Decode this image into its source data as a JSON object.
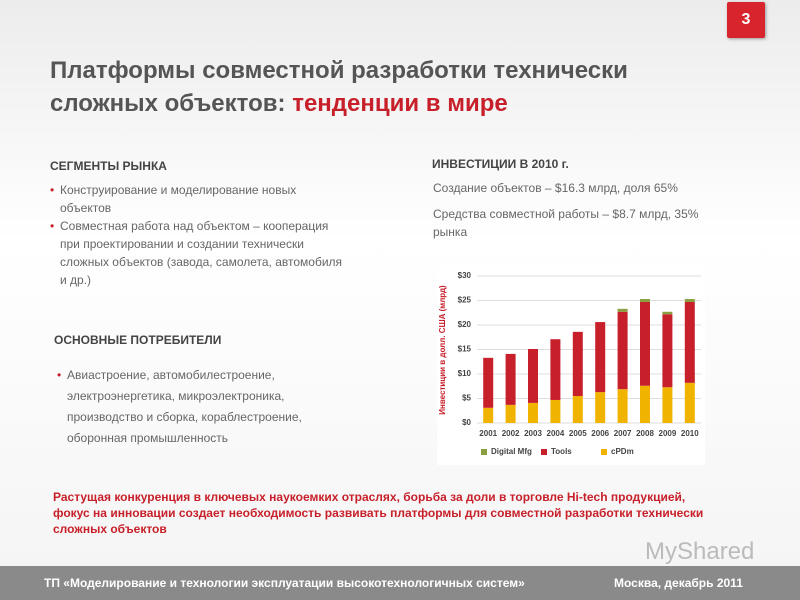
{
  "slide_number": "3",
  "title": {
    "line1": "Платформы совместной разработки технически",
    "line2": "сложных объектов:",
    "highlight": "тенденции в мире"
  },
  "segments": {
    "heading": "СЕГМЕНТЫ РЫНКА",
    "items": [
      "Конструирование и моделирование новых объектов",
      "Совместная работа над объектом – кооперация при проектировании и создании технически сложных объектов (завода, самолета, автомобиля и др.)"
    ]
  },
  "consumers": {
    "heading": "ОСНОВНЫЕ ПОТРЕБИТЕЛИ",
    "items": [
      "Авиастроение, автомобилестроение, электроэнергетика, микроэлектроника, производство и сборка, кораблестроение, оборонная промышленность"
    ]
  },
  "investments": {
    "heading": "ИНВЕСТИЦИИ В 2010 г.",
    "lines": [
      "Создание объектов – $16.3 млрд, доля 65%",
      "Средства совместной работы – $8.7 млрд, 35% рынка"
    ]
  },
  "conclusion": "Растущая конкуренция в ключевых наукоемких отраслях, борьба за доли в торговле Hi-tech продукцией, фокус на инновации создает необходимость развивать платформы для совместной разработки технически сложных объектов",
  "watermark": "MyShared",
  "footer": {
    "left": "ТП «Моделирование и технологии эксплуатации высокотехнологичных систем»",
    "right": "Москва, декабрь 2011"
  },
  "chart_data": {
    "type": "stacked-bar",
    "y_label": "Инвестиции в долл. США (млрд)",
    "categories": [
      "2001",
      "2002",
      "2003",
      "2004",
      "2005",
      "2006",
      "2007",
      "2008",
      "2009",
      "2010"
    ],
    "series": [
      {
        "name": "cPDm",
        "color": "#f0b400",
        "values": [
          3.1,
          3.7,
          4.1,
          4.7,
          5.5,
          6.3,
          6.9,
          7.6,
          7.3,
          8.2
        ]
      },
      {
        "name": "Tools",
        "color": "#c8202a",
        "values": [
          10.2,
          10.4,
          11,
          12.4,
          13.1,
          14.3,
          15.8,
          17.1,
          14.9,
          16.5
        ]
      },
      {
        "name": "Digital Mfg",
        "color": "#8aa040",
        "values": [
          0,
          0,
          0,
          0,
          0,
          0,
          0.6,
          0.6,
          0.5,
          0.6
        ]
      }
    ],
    "legend_order": [
      2,
      1,
      0
    ],
    "ylim": [
      0,
      30
    ],
    "yticks": [
      {
        "value": 0,
        "label": "$0"
      },
      {
        "value": 5,
        "label": "$5"
      },
      {
        "value": 10,
        "label": "$10"
      },
      {
        "value": 15,
        "label": "$15"
      },
      {
        "value": 20,
        "label": "$20"
      },
      {
        "value": 25,
        "label": "$25"
      },
      {
        "value": 30,
        "label": "$30"
      }
    ],
    "grid": true
  }
}
